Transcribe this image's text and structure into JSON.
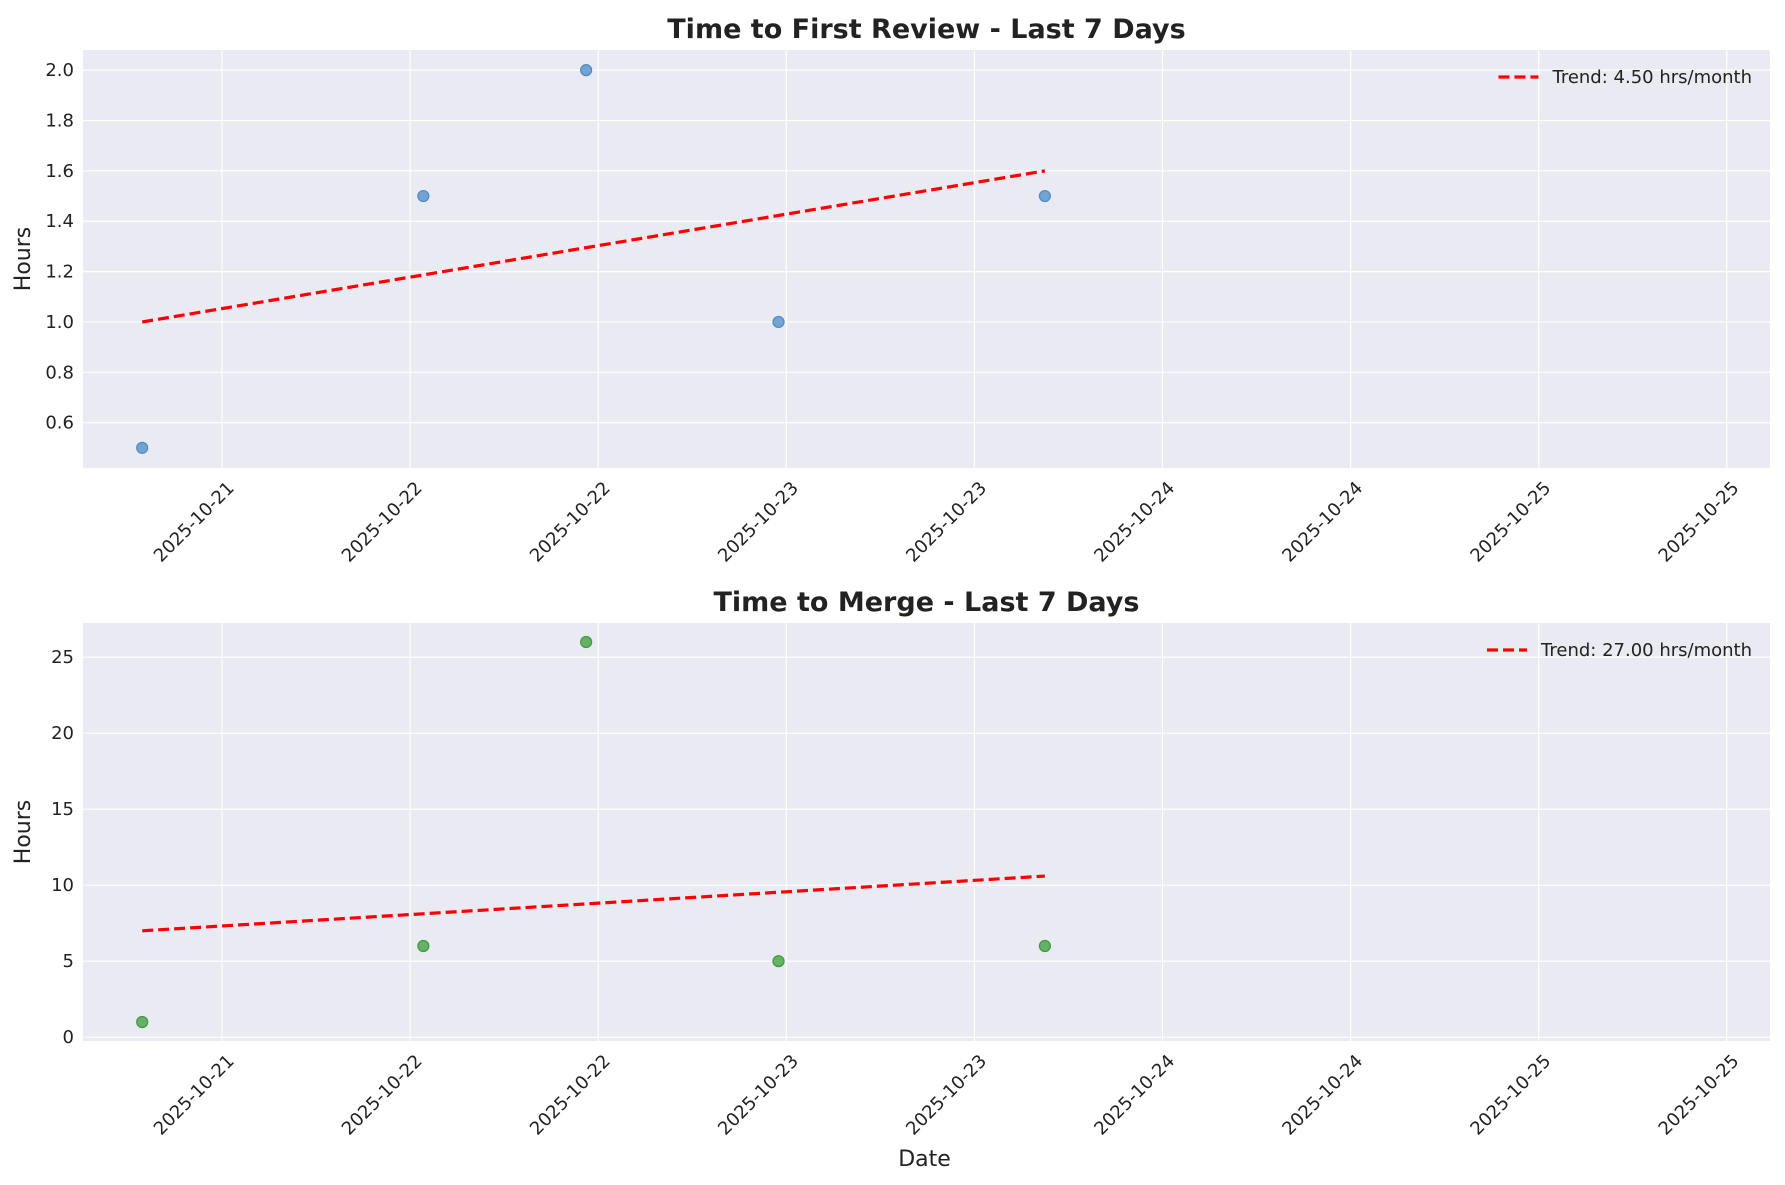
{
  "chart_data": [
    {
      "type": "scatter",
      "title": "Time to First Review - Last 7 Days",
      "xlabel": "",
      "ylabel": "Hours",
      "x_tick_labels": [
        "2025-10-21",
        "2025-10-22",
        "2025-10-22",
        "2025-10-23",
        "2025-10-23",
        "2025-10-24",
        "2025-10-24",
        "2025-10-25",
        "2025-10-25"
      ],
      "y_ticks": [
        0.6,
        0.8,
        1.0,
        1.2,
        1.4,
        1.6,
        1.8,
        2.0
      ],
      "y_tick_labels": [
        "0.6",
        "0.8",
        "1.0",
        "1.2",
        "1.4",
        "1.6",
        "1.8",
        "2.0"
      ],
      "ylim": [
        0.42,
        2.08
      ],
      "xlim": [
        "2025-10-20 03:00",
        "2025-10-24 21:00"
      ],
      "grid": true,
      "legend_position": "top-right",
      "points": [
        {
          "x": "2025-10-20 07:00",
          "y": 0.5
        },
        {
          "x": "2025-10-21 02:00",
          "y": 1.5
        },
        {
          "x": "2025-10-21 13:00",
          "y": 2.0
        },
        {
          "x": "2025-10-22 02:00",
          "y": 1.0
        },
        {
          "x": "2025-10-22 20:00",
          "y": 1.5
        }
      ],
      "point_color": "#4c8bc6",
      "trend": {
        "label": "Trend: 4.50 hrs/month",
        "start": {
          "x": "2025-10-20 07:00",
          "y": 1.0
        },
        "end": {
          "x": "2025-10-22 20:00",
          "y": 1.6
        },
        "color": "#ff0000"
      }
    },
    {
      "type": "scatter",
      "title": "Time to Merge - Last 7 Days",
      "xlabel": "Date",
      "ylabel": "Hours",
      "x_tick_labels": [
        "2025-10-21",
        "2025-10-22",
        "2025-10-22",
        "2025-10-23",
        "2025-10-23",
        "2025-10-24",
        "2025-10-24",
        "2025-10-25",
        "2025-10-25"
      ],
      "y_ticks": [
        0,
        5,
        10,
        15,
        20,
        25
      ],
      "y_tick_labels": [
        "0",
        "5",
        "10",
        "15",
        "20",
        "25"
      ],
      "ylim": [
        -0.25,
        27.25
      ],
      "xlim": [
        "2025-10-20 03:00",
        "2025-10-24 21:00"
      ],
      "grid": true,
      "legend_position": "top-right",
      "points": [
        {
          "x": "2025-10-20 07:00",
          "y": 1
        },
        {
          "x": "2025-10-21 02:00",
          "y": 6
        },
        {
          "x": "2025-10-21 13:00",
          "y": 26
        },
        {
          "x": "2025-10-22 02:00",
          "y": 5
        },
        {
          "x": "2025-10-22 20:00",
          "y": 6
        }
      ],
      "point_color": "#3a9c3a",
      "trend": {
        "label": "Trend: 27.00 hrs/month",
        "start": {
          "x": "2025-10-20 07:00",
          "y": 7.0
        },
        "end": {
          "x": "2025-10-22 20:00",
          "y": 10.6
        },
        "color": "#ff0000"
      }
    }
  ],
  "colors": {
    "axes_background": "#eaeaf2",
    "grid": "#ffffff"
  }
}
